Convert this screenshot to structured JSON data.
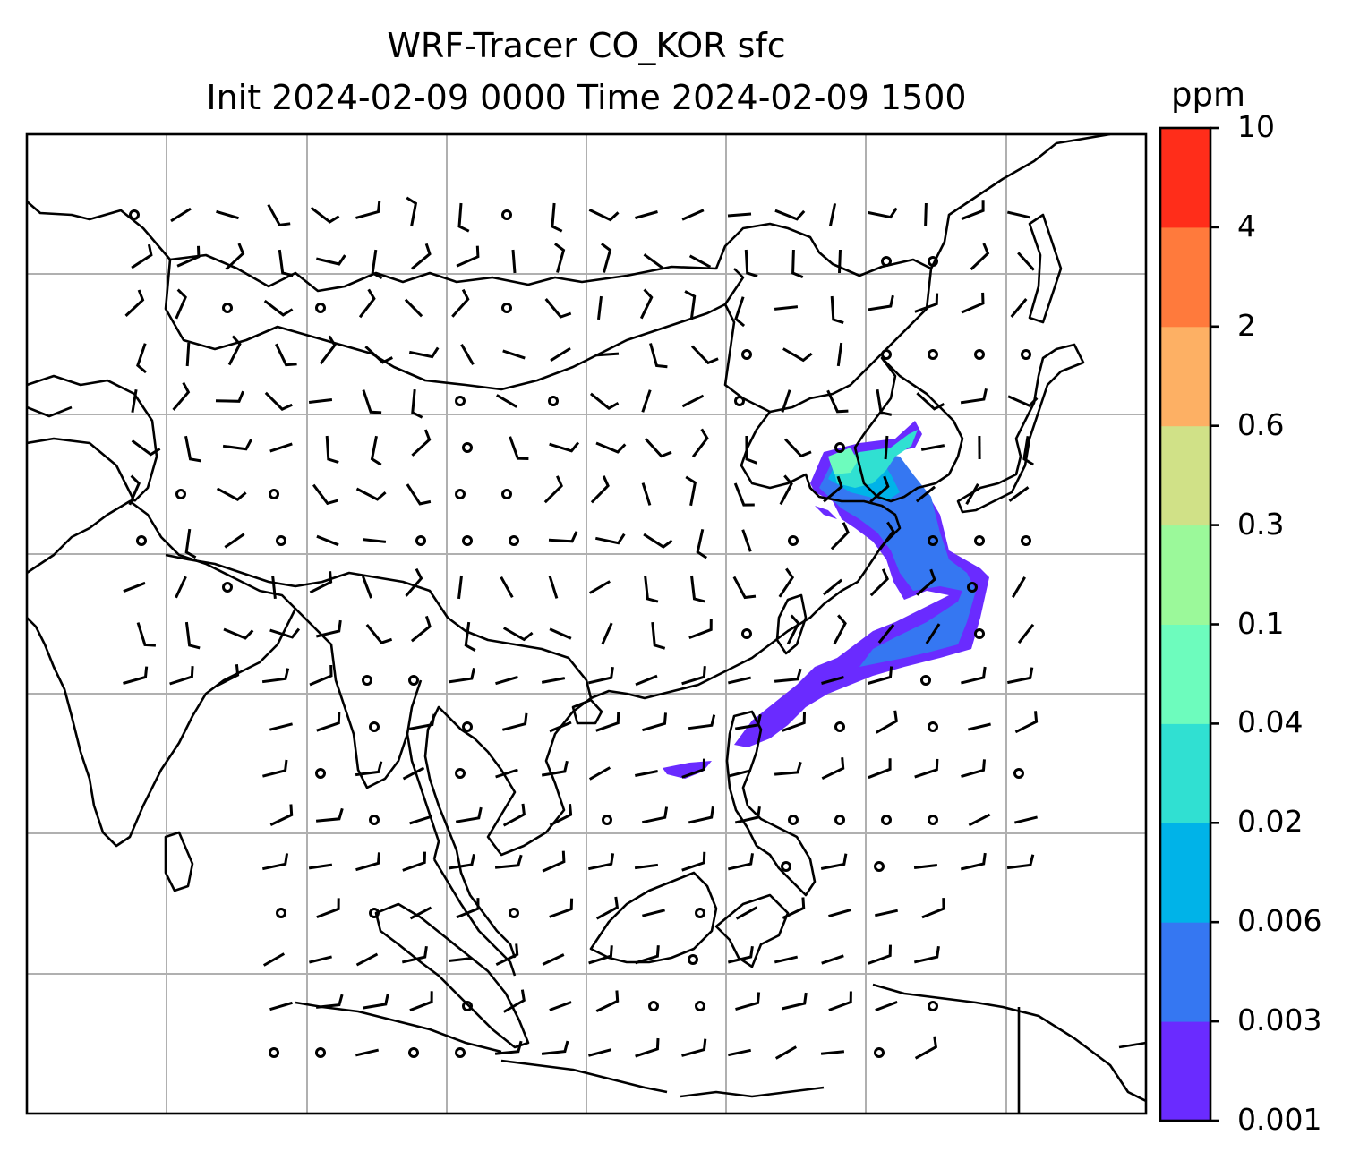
{
  "title": "WRF-Tracer CO_KOR sfc",
  "subtitle": "Init 2024-02-09 0000 Time 2024-02-09 1500",
  "colorbar": {
    "unit": "ppm",
    "levels": [
      "0.001",
      "0.003",
      "0.006",
      "0.02",
      "0.04",
      "0.1",
      "0.3",
      "0.6",
      "2",
      "4",
      "10"
    ],
    "colors": [
      "#6a2bff",
      "#3577f2",
      "#00b3e8",
      "#30e0d2",
      "#6dfcbd",
      "#9bf99a",
      "#d0e187",
      "#fdb064",
      "#ff7a3c",
      "#ff2d1a"
    ]
  }
}
